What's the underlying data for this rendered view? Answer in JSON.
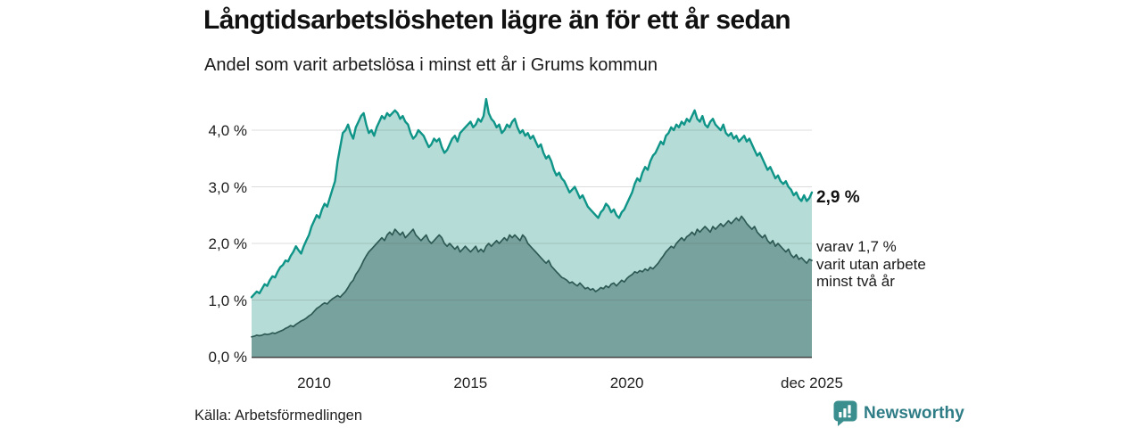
{
  "header": {
    "title": "Långtidsarbetslösheten lägre än för ett år sedan",
    "subtitle": "Andel som varit arbetslösa i minst ett år i Grums kommun"
  },
  "chart_data": {
    "type": "area",
    "title": "Långtidsarbetslösheten lägre än för ett år sedan",
    "subtitle": "Andel som varit arbetslösa i minst ett år i Grums kommun",
    "unit": "%",
    "x_start": "2008-01",
    "x_end": "2025-12",
    "frequency": "monthly",
    "ylim": [
      0,
      4.65
    ],
    "grid": "horizontal",
    "y_ticks": [
      0,
      1,
      2,
      3,
      4
    ],
    "y_tick_labels": [
      "0,0 %",
      "1,0 %",
      "2,0 %",
      "3,0 %",
      "4,0 %"
    ],
    "x_tick_month_index": [
      24,
      84,
      144,
      215
    ],
    "x_tick_labels": [
      "2010",
      "2015",
      "2020",
      "dec 2025"
    ],
    "colors": {
      "line_primary": "#0f9488",
      "fill_primary": "#b5dcd6",
      "line_secondary": "#2e5a55",
      "fill_secondary": "#78a29d",
      "axis": "#3f3f3f",
      "gridline": "#d6d6d6"
    },
    "series": [
      {
        "name": "Andel arbetslösa minst ett år",
        "end_label": "2,9 %",
        "values": [
          1.05,
          1.1,
          1.15,
          1.12,
          1.2,
          1.28,
          1.25,
          1.35,
          1.42,
          1.4,
          1.5,
          1.58,
          1.62,
          1.7,
          1.68,
          1.78,
          1.85,
          1.95,
          1.88,
          1.82,
          1.95,
          2.05,
          2.15,
          2.3,
          2.4,
          2.5,
          2.45,
          2.6,
          2.7,
          2.65,
          2.8,
          2.95,
          3.1,
          3.45,
          3.7,
          3.95,
          4.0,
          4.1,
          3.95,
          3.85,
          4.05,
          4.15,
          4.25,
          4.3,
          4.1,
          3.95,
          4.0,
          3.9,
          4.05,
          4.15,
          4.25,
          4.2,
          4.3,
          4.25,
          4.3,
          4.35,
          4.3,
          4.2,
          4.25,
          4.15,
          4.1,
          3.95,
          3.85,
          3.9,
          4.0,
          3.95,
          3.9,
          3.8,
          3.7,
          3.75,
          3.85,
          3.8,
          3.85,
          3.7,
          3.6,
          3.65,
          3.75,
          3.85,
          3.9,
          3.8,
          3.95,
          4.0,
          4.05,
          4.1,
          4.15,
          4.05,
          4.1,
          4.2,
          4.15,
          4.25,
          4.55,
          4.3,
          4.2,
          4.15,
          4.05,
          4.1,
          3.95,
          4.0,
          4.1,
          4.05,
          4.15,
          4.2,
          4.05,
          3.95,
          4.0,
          3.9,
          3.95,
          3.85,
          3.9,
          3.8,
          3.7,
          3.75,
          3.6,
          3.5,
          3.55,
          3.45,
          3.3,
          3.2,
          3.25,
          3.15,
          3.1,
          3.0,
          2.9,
          2.95,
          3.0,
          2.9,
          2.8,
          2.85,
          2.75,
          2.65,
          2.6,
          2.55,
          2.5,
          2.45,
          2.55,
          2.6,
          2.7,
          2.65,
          2.55,
          2.6,
          2.5,
          2.45,
          2.55,
          2.6,
          2.7,
          2.8,
          2.9,
          3.05,
          3.15,
          3.1,
          3.25,
          3.35,
          3.3,
          3.45,
          3.55,
          3.6,
          3.7,
          3.8,
          3.75,
          3.9,
          3.95,
          4.05,
          4.0,
          4.1,
          4.05,
          4.15,
          4.1,
          4.2,
          4.15,
          4.25,
          4.35,
          4.2,
          4.15,
          4.25,
          4.1,
          4.05,
          4.15,
          4.2,
          4.1,
          4.05,
          4.0,
          4.1,
          3.95,
          3.9,
          3.95,
          3.85,
          3.9,
          3.8,
          3.85,
          3.9,
          3.8,
          3.85,
          3.75,
          3.65,
          3.55,
          3.6,
          3.5,
          3.4,
          3.3,
          3.35,
          3.25,
          3.15,
          3.2,
          3.1,
          3.05,
          3.1,
          3.0,
          2.95,
          2.85,
          2.9,
          2.8,
          2.75,
          2.85,
          2.75,
          2.8,
          2.9
        ]
      },
      {
        "name": "varav utan arbete minst två år",
        "end_label": "varav 1,7 %\nvarit utan arbete\nminst två år",
        "values": [
          0.35,
          0.36,
          0.38,
          0.37,
          0.38,
          0.4,
          0.39,
          0.4,
          0.42,
          0.41,
          0.43,
          0.45,
          0.47,
          0.5,
          0.52,
          0.55,
          0.53,
          0.57,
          0.6,
          0.63,
          0.65,
          0.68,
          0.72,
          0.75,
          0.8,
          0.85,
          0.88,
          0.92,
          0.95,
          0.93,
          0.98,
          1.02,
          1.05,
          1.08,
          1.05,
          1.1,
          1.15,
          1.22,
          1.3,
          1.35,
          1.45,
          1.52,
          1.6,
          1.7,
          1.78,
          1.85,
          1.9,
          1.95,
          2.0,
          2.05,
          2.1,
          2.05,
          2.15,
          2.2,
          2.15,
          2.25,
          2.2,
          2.15,
          2.2,
          2.1,
          2.15,
          2.2,
          2.25,
          2.15,
          2.1,
          2.05,
          2.1,
          2.15,
          2.05,
          2.0,
          2.05,
          2.1,
          2.15,
          2.1,
          2.0,
          1.95,
          2.0,
          1.95,
          1.9,
          1.95,
          1.85,
          1.9,
          1.95,
          1.9,
          1.85,
          1.9,
          1.95,
          1.85,
          1.9,
          1.85,
          1.95,
          2.0,
          1.95,
          2.0,
          2.05,
          2.0,
          2.05,
          2.1,
          2.05,
          2.15,
          2.1,
          2.15,
          2.1,
          2.05,
          2.15,
          2.1,
          2.0,
          1.95,
          1.9,
          1.85,
          1.8,
          1.75,
          1.7,
          1.65,
          1.7,
          1.6,
          1.55,
          1.5,
          1.45,
          1.4,
          1.38,
          1.35,
          1.3,
          1.32,
          1.28,
          1.25,
          1.3,
          1.25,
          1.2,
          1.22,
          1.18,
          1.2,
          1.15,
          1.18,
          1.22,
          1.2,
          1.25,
          1.22,
          1.28,
          1.3,
          1.25,
          1.3,
          1.35,
          1.32,
          1.38,
          1.42,
          1.45,
          1.5,
          1.48,
          1.52,
          1.5,
          1.55,
          1.52,
          1.58,
          1.55,
          1.6,
          1.65,
          1.72,
          1.78,
          1.85,
          1.9,
          1.95,
          1.92,
          2.0,
          2.05,
          2.1,
          2.05,
          2.12,
          2.15,
          2.2,
          2.15,
          2.25,
          2.2,
          2.25,
          2.3,
          2.25,
          2.2,
          2.3,
          2.25,
          2.3,
          2.35,
          2.3,
          2.35,
          2.4,
          2.35,
          2.4,
          2.45,
          2.4,
          2.48,
          2.42,
          2.35,
          2.3,
          2.25,
          2.3,
          2.2,
          2.15,
          2.1,
          2.15,
          2.05,
          2.0,
          2.05,
          1.95,
          2.0,
          1.95,
          1.9,
          1.85,
          1.9,
          1.8,
          1.75,
          1.8,
          1.72,
          1.75,
          1.7,
          1.65,
          1.72,
          1.7
        ]
      }
    ]
  },
  "footer": {
    "source": "Källa: Arbetsförmedlingen",
    "brand": "Newsworthy"
  }
}
